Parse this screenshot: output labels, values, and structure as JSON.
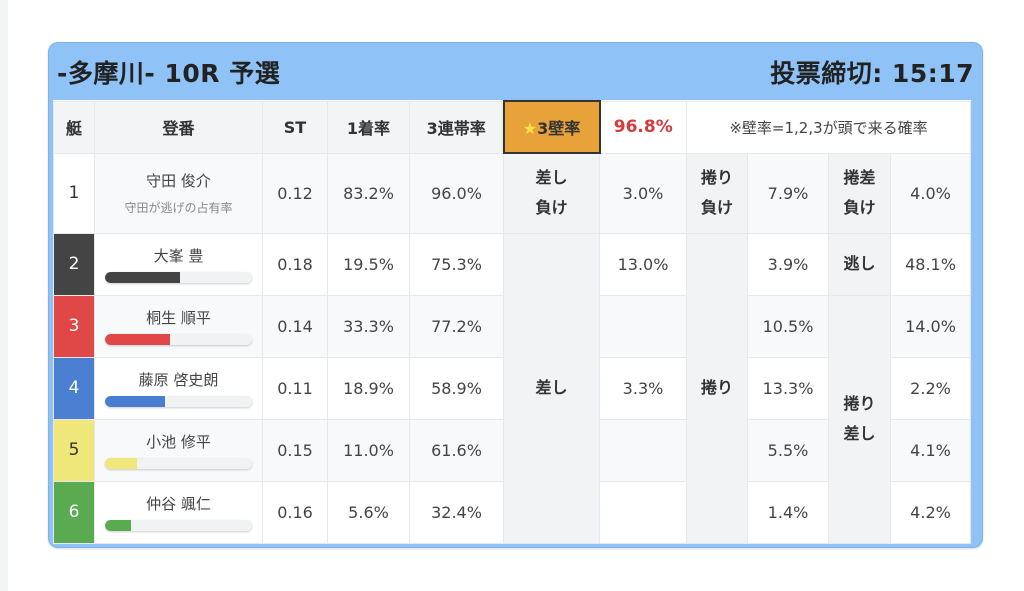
{
  "header": {
    "title": "-多摩川- 10R 予選",
    "deadline": "投票締切: 15:17"
  },
  "columns": {
    "boat": "艇",
    "name": "登番",
    "st": "ST",
    "win": "1着率",
    "top3": "3連帯率",
    "star": "★",
    "wall_label": "3壁率",
    "wall_rate": "96.8%",
    "note": "※壁率=1,2,3が頭で来る確率"
  },
  "rows": [
    {
      "boat": "1",
      "name": "守田 俊介",
      "sub": "守田が逃げの占有率",
      "st": "0.12",
      "win": "83.2%",
      "top3": "96.0%",
      "c1": "3.0%",
      "c2": "7.9%",
      "c3": "4.0%",
      "color": "#ffffff",
      "text": "#333333"
    },
    {
      "boat": "2",
      "name": "大峯 豊",
      "st": "0.18",
      "win": "19.5%",
      "top3": "75.3%",
      "c1": "13.0%",
      "c2": "3.9%",
      "c3": "48.1%",
      "color": "#444444",
      "text": "#ffffff",
      "bar_pct": 51
    },
    {
      "boat": "3",
      "name": "桐生 順平",
      "st": "0.14",
      "win": "33.3%",
      "top3": "77.2%",
      "c1": "",
      "c2": "10.5%",
      "c3": "14.0%",
      "color": "#e04848",
      "text": "#ffffff",
      "bar_pct": 44
    },
    {
      "boat": "4",
      "name": "藤原 啓史朗",
      "st": "0.11",
      "win": "18.9%",
      "top3": "58.9%",
      "c1": "3.3%",
      "c2": "13.3%",
      "c3": "2.2%",
      "color": "#4a7ed0",
      "text": "#ffffff",
      "bar_pct": 41
    },
    {
      "boat": "5",
      "name": "小池 修平",
      "st": "0.15",
      "win": "11.0%",
      "top3": "61.6%",
      "c1": "",
      "c2": "5.5%",
      "c3": "4.1%",
      "color": "#efe77a",
      "text": "#333333",
      "bar_pct": 22
    },
    {
      "boat": "6",
      "name": "仲谷 颯仁",
      "st": "0.16",
      "win": "5.6%",
      "top3": "32.4%",
      "c1": "",
      "c2": "1.4%",
      "c3": "4.2%",
      "color": "#5aaa52",
      "text": "#ffffff",
      "bar_pct": 18
    }
  ],
  "labels": {
    "sashi_make": [
      "差し",
      "負け"
    ],
    "sashi": "差し",
    "makuri_make": [
      "捲り",
      "負け"
    ],
    "makuri": "捲り",
    "makusa_make": [
      "捲差",
      "負け"
    ],
    "nigashi": "逃し",
    "makuri_sashi": [
      "捲り",
      "差し"
    ]
  }
}
